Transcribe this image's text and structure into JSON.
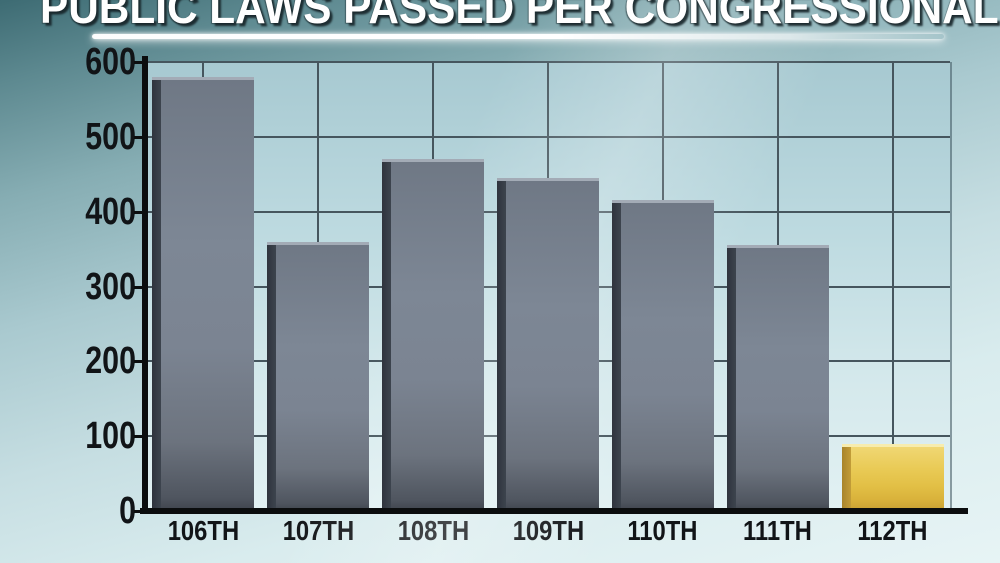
{
  "title": "PUBLIC LAWS PASSED PER CONGRESSIONAL SESSION",
  "colors": {
    "background_top": "#3d6b73",
    "background_bottom": "#e7f4f5",
    "plot_background": "#cde4e8",
    "gridline": "#46565e",
    "axis": "#0b0d0e",
    "bar_default": "#7d8795",
    "bar_default_side": "#2f343d",
    "bar_highlight": "#e2bf45",
    "bar_highlight_side": "#a8842c",
    "title_text": "#ffffff",
    "label_text": "#111417"
  },
  "chart_data": {
    "type": "bar",
    "title": "PUBLIC LAWS PASSED PER CONGRESSIONAL SESSION",
    "categories": [
      "106TH",
      "107TH",
      "108TH",
      "109TH",
      "110TH",
      "111TH",
      "112TH"
    ],
    "values": [
      580,
      360,
      470,
      445,
      415,
      355,
      90
    ],
    "highlight_category": "112TH",
    "series_note": "single series; 112TH bar highlighted gold, others slate gray",
    "xlabel": "",
    "ylabel": "",
    "ylim": [
      0,
      600
    ],
    "y_ticks": [
      0,
      100,
      200,
      300,
      400,
      500,
      600
    ],
    "grid": true,
    "vertical_grid_at_category_centers": true,
    "legend": false
  }
}
